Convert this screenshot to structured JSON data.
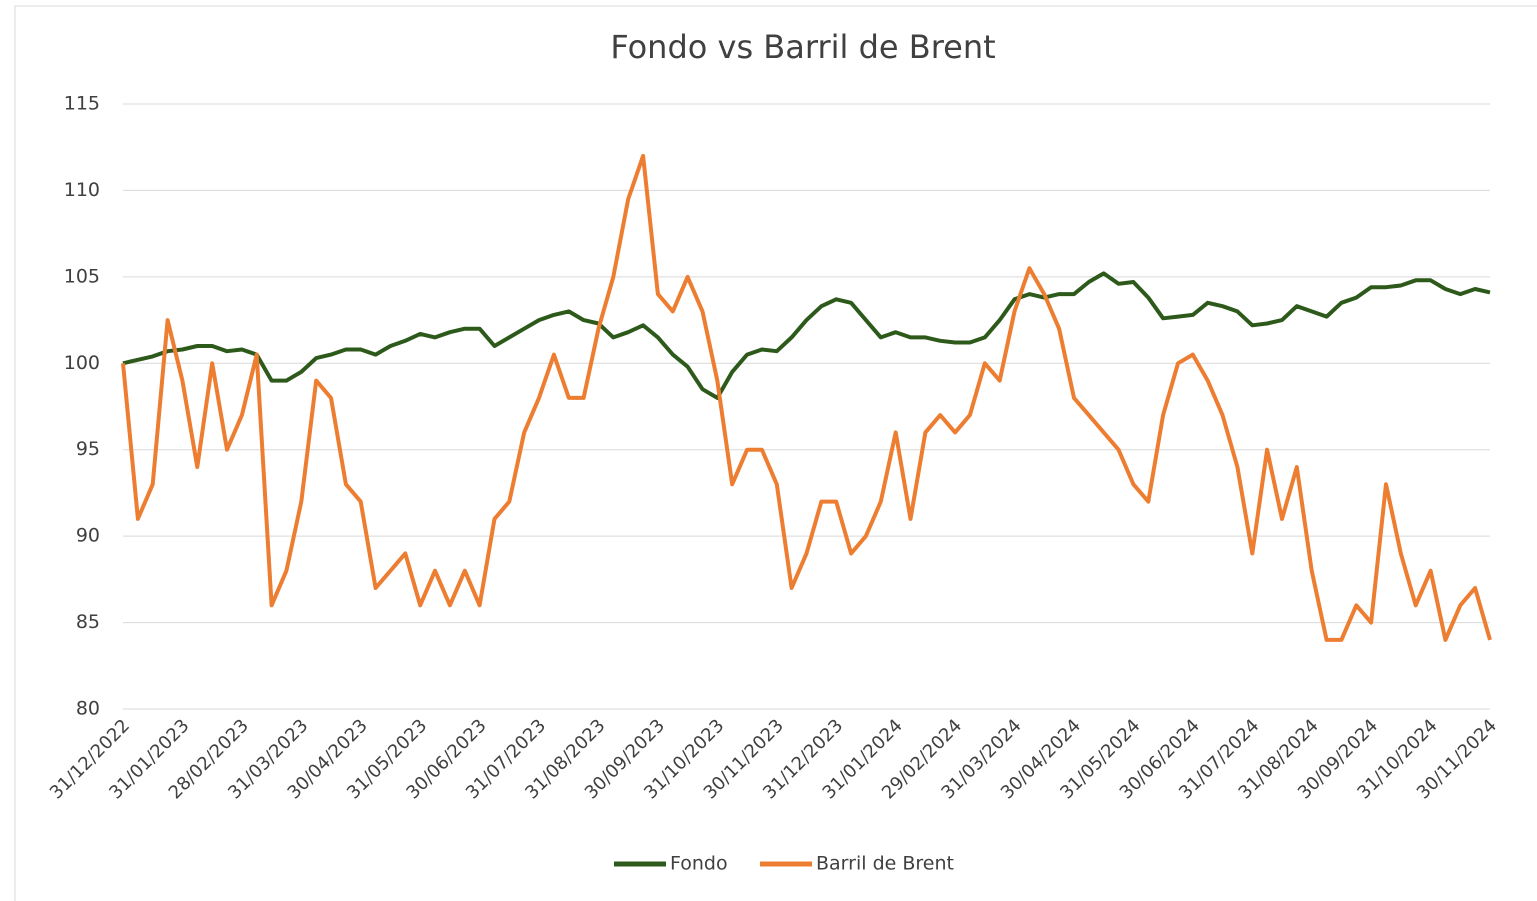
{
  "chart_data": {
    "type": "line",
    "title": "Fondo vs Barril de Brent",
    "categories": [
      "31/12/2022",
      null,
      null,
      null,
      "31/01/2023",
      null,
      null,
      null,
      "28/02/2023",
      null,
      null,
      null,
      "31/03/2023",
      null,
      null,
      null,
      "30/04/2023",
      null,
      null,
      null,
      "31/05/2023",
      null,
      null,
      null,
      "30/06/2023",
      null,
      null,
      null,
      "31/07/2023",
      null,
      null,
      null,
      "31/08/2023",
      null,
      null,
      null,
      "30/09/2023",
      null,
      null,
      null,
      "31/10/2023",
      null,
      null,
      null,
      "30/11/2023",
      null,
      null,
      null,
      "31/12/2023",
      null,
      null,
      null,
      "31/01/2024",
      null,
      null,
      null,
      "29/02/2024",
      null,
      null,
      null,
      "31/03/2024",
      null,
      null,
      null,
      "30/04/2024",
      null,
      null,
      null,
      "31/05/2024",
      null,
      null,
      null,
      "30/06/2024",
      null,
      null,
      null,
      "31/07/2024",
      null,
      null,
      null,
      "31/08/2024",
      null,
      null,
      null,
      "30/09/2024",
      null,
      null,
      null,
      "31/10/2024",
      null,
      null,
      null,
      "30/11/2024"
    ],
    "series": [
      {
        "name": "Fondo",
        "color": "#2d5a1b",
        "values": [
          100,
          100.2,
          100.4,
          100.7,
          100.8,
          101,
          101,
          100.7,
          100.8,
          100.5,
          99,
          99,
          99.5,
          100.3,
          100.5,
          100.8,
          100.8,
          100.5,
          101,
          101.3,
          101.7,
          101.5,
          101.8,
          102,
          102,
          101,
          101.5,
          102,
          102.5,
          102.8,
          103,
          102.5,
          102.3,
          101.5,
          101.8,
          102.2,
          101.5,
          100.5,
          99.8,
          98.5,
          98,
          99.5,
          100.5,
          100.8,
          100.7,
          101.5,
          102.5,
          103.3,
          103.7,
          103.5,
          102.5,
          101.5,
          101.8,
          101.5,
          101.5,
          101.3,
          101.2,
          101.2,
          101.5,
          102.5,
          103.7,
          104,
          103.8,
          104,
          104,
          104.7,
          105.2,
          104.6,
          104.7,
          103.8,
          102.6,
          102.7,
          102.8,
          103.5,
          103.3,
          103,
          102.2,
          102.3,
          102.5,
          103.3,
          103,
          102.7,
          103.5,
          103.8,
          104.4,
          104.4,
          104.5,
          104.8,
          104.8,
          104.3,
          104,
          104.3,
          104.1
        ]
      },
      {
        "name": "Barril de Brent",
        "color": "#ed7d31",
        "values": [
          100,
          91,
          93,
          102.5,
          99,
          94,
          100,
          95,
          97,
          100.5,
          86,
          88,
          92,
          99,
          98,
          93,
          92,
          87,
          88,
          89,
          86,
          88,
          86,
          88,
          86,
          91,
          92,
          96,
          98,
          100.5,
          98,
          98,
          102,
          105,
          109.5,
          112,
          104,
          103,
          105,
          103,
          99,
          93,
          95,
          95,
          93,
          87,
          89,
          92,
          92,
          89,
          90,
          92,
          96,
          91,
          96,
          97,
          96,
          97,
          100,
          99,
          103,
          105.5,
          104,
          102,
          98,
          97,
          96,
          95,
          93,
          92,
          97,
          100,
          100.5,
          99,
          97,
          94,
          89,
          95,
          91,
          94,
          88,
          84,
          84,
          86,
          85,
          93,
          89,
          86,
          88,
          84,
          86,
          87,
          84
        ]
      }
    ],
    "ylim": [
      80,
      115
    ],
    "yticks": [
      80,
      85,
      90,
      95,
      100,
      105,
      110,
      115
    ],
    "grid": true,
    "legend": "bottom"
  }
}
